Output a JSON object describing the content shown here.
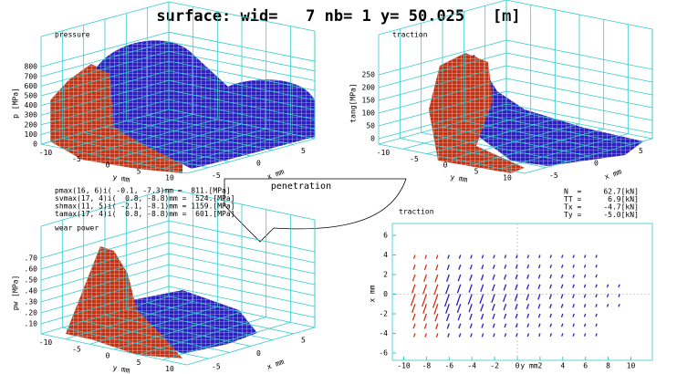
{
  "title": "surface: wid=   7 nb= 1 y= 50.025   [m]",
  "pressure": {
    "title": "pressure",
    "zlabel": "p [MPa]",
    "zticks": [
      "0",
      "100",
      "200",
      "300",
      "400",
      "500",
      "600",
      "700",
      "800"
    ],
    "yticks": [
      "-10",
      "-5",
      "0",
      "5",
      "10"
    ],
    "xticks": [
      "-5",
      "0",
      "5"
    ],
    "ylabel": "y mm",
    "xlabel": "x mm"
  },
  "traction_3d": {
    "title": "traction",
    "zlabel": "tang[MPa]",
    "zticks": [
      "0",
      "50",
      "100",
      "150",
      "200",
      "250"
    ],
    "yticks": [
      "-10",
      "-5",
      "0",
      "5",
      "10"
    ],
    "xticks": [
      "-5",
      "0",
      "5"
    ],
    "ylabel": "y mm",
    "xlabel": "x mm"
  },
  "wear_power": {
    "title": "wear power",
    "zlabel": "pw [MPa]",
    "zticks": [
      ".10",
      ".20",
      ".30",
      ".40",
      ".50",
      ".60",
      ".70"
    ],
    "yticks": [
      "-10",
      "-5",
      "0",
      "5",
      "10"
    ],
    "xticks": [
      "-5",
      "0",
      "5"
    ],
    "ylabel": "y mm",
    "xlabel": "x mm"
  },
  "stats": [
    "pmax(16, 6)i( -0.1, -7.3)mm =  811.[MPa]",
    "svmax(17, 4)i(  0.8, -8.8)mm =  524.[MPa]",
    "shmax(11, 5)i( -2.1, -8.1)mm = 1159.[MPa]",
    "tamax(17, 4)i(  0.8, -8.8)mm =  601.[MPa]"
  ],
  "penetration": "penetration",
  "traction_vectors": {
    "title": "traction",
    "xticks": [
      "-10",
      "-8",
      "-6",
      "-4",
      "-2",
      "0",
      "2",
      "4",
      "6",
      "8",
      "10"
    ],
    "yticks": [
      "-6",
      "-4",
      "-2",
      "0",
      "2",
      "4",
      "6"
    ],
    "xlabel": "y mm",
    "ylabel": "x mm",
    "forces": [
      "N  =     62.7[kN]",
      "TT =      6.9[kN]",
      "Tx =     -4.7[kN]",
      "Ty =     -5.0[kN]"
    ]
  }
}
